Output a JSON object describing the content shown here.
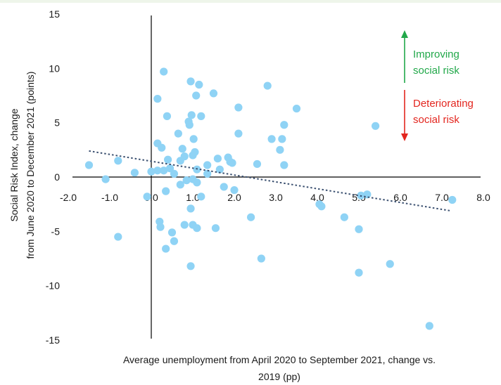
{
  "colors": {
    "background_band": "#eef5ea",
    "point": "#8fd3f5",
    "trendline": "#3b5070",
    "axis": "#000000",
    "improving": "#22a84a",
    "deteriorating": "#e3261f"
  },
  "chart_data": {
    "type": "scatter",
    "xlabel": [
      "Average unemployment from April 2020 to September 2021, change vs.",
      "2019 (pp)"
    ],
    "ylabel": [
      "Social Risk Index, change",
      "from June 2020 to December 2021 (points)"
    ],
    "xlim": [
      -2,
      8
    ],
    "ylim": [
      -15,
      15
    ],
    "x_ticks": [
      -2,
      -1,
      0,
      1,
      2,
      3,
      4,
      5,
      6,
      7,
      8
    ],
    "x_tick_labels": [
      "-2.0",
      "-1.0",
      "0.0",
      "1.0",
      "2.0",
      "3.0",
      "4.0",
      "5.0",
      "6.0",
      "7.0",
      "8.0"
    ],
    "y_ticks": [
      15,
      10,
      5,
      0,
      -5,
      -10,
      -15
    ],
    "y_tick_labels": [
      "15",
      "10",
      "5",
      "0",
      "-5",
      "-10",
      "-15"
    ],
    "grid": false,
    "legend": "none",
    "trendline": {
      "x": [
        -1.5,
        7.2
      ],
      "y": [
        2.4,
        -3.1
      ]
    },
    "annotations": {
      "improving": [
        "Improving",
        "social risk"
      ],
      "deteriorating": [
        "Deteriorating",
        "social risk"
      ]
    },
    "points": [
      [
        -1.5,
        1.1
      ],
      [
        -1.1,
        -0.2
      ],
      [
        -0.8,
        1.5
      ],
      [
        -0.8,
        -5.5
      ],
      [
        -0.4,
        0.4
      ],
      [
        -0.1,
        -1.8
      ],
      [
        0.0,
        0.5
      ],
      [
        0.15,
        0.6
      ],
      [
        0.15,
        3.1
      ],
      [
        0.15,
        7.2
      ],
      [
        0.2,
        -4.1
      ],
      [
        0.22,
        -4.6
      ],
      [
        0.25,
        2.7
      ],
      [
        0.3,
        9.7
      ],
      [
        0.3,
        0.6
      ],
      [
        0.35,
        -6.6
      ],
      [
        0.35,
        -1.3
      ],
      [
        0.38,
        5.6
      ],
      [
        0.4,
        1.6
      ],
      [
        0.45,
        0.8
      ],
      [
        0.5,
        -5.1
      ],
      [
        0.55,
        0.3
      ],
      [
        0.55,
        -5.9
      ],
      [
        0.65,
        4.0
      ],
      [
        0.7,
        1.5
      ],
      [
        0.7,
        -0.7
      ],
      [
        0.75,
        2.6
      ],
      [
        0.8,
        1.9
      ],
      [
        0.8,
        -4.4
      ],
      [
        0.85,
        -0.3
      ],
      [
        0.9,
        5.1
      ],
      [
        0.92,
        4.8
      ],
      [
        0.95,
        -8.2
      ],
      [
        0.95,
        -2.9
      ],
      [
        0.95,
        8.8
      ],
      [
        0.97,
        5.7
      ],
      [
        1.0,
        2.0
      ],
      [
        1.0,
        -0.2
      ],
      [
        1.0,
        -4.4
      ],
      [
        1.02,
        3.5
      ],
      [
        1.05,
        2.3
      ],
      [
        1.08,
        7.5
      ],
      [
        1.1,
        -0.5
      ],
      [
        1.1,
        0.7
      ],
      [
        1.1,
        -4.7
      ],
      [
        1.15,
        8.5
      ],
      [
        1.2,
        5.6
      ],
      [
        1.2,
        -1.8
      ],
      [
        1.35,
        0.3
      ],
      [
        1.35,
        1.1
      ],
      [
        1.5,
        7.7
      ],
      [
        1.55,
        -4.7
      ],
      [
        1.6,
        1.7
      ],
      [
        1.65,
        0.7
      ],
      [
        1.75,
        -0.9
      ],
      [
        1.85,
        1.8
      ],
      [
        1.9,
        1.4
      ],
      [
        1.95,
        1.3
      ],
      [
        2.0,
        -1.2
      ],
      [
        2.1,
        6.4
      ],
      [
        2.1,
        4.0
      ],
      [
        2.4,
        -3.7
      ],
      [
        2.55,
        1.2
      ],
      [
        2.65,
        -7.5
      ],
      [
        2.8,
        8.4
      ],
      [
        2.9,
        3.5
      ],
      [
        3.1,
        2.5
      ],
      [
        3.15,
        3.5
      ],
      [
        3.2,
        4.8
      ],
      [
        3.2,
        1.1
      ],
      [
        3.5,
        6.3
      ],
      [
        4.05,
        -2.5
      ],
      [
        4.1,
        -2.7
      ],
      [
        4.65,
        -3.7
      ],
      [
        5.0,
        -4.8
      ],
      [
        5.0,
        -8.8
      ],
      [
        5.05,
        -1.7
      ],
      [
        5.2,
        -1.6
      ],
      [
        5.4,
        4.7
      ],
      [
        5.75,
        -8.0
      ],
      [
        6.7,
        -13.7
      ],
      [
        7.25,
        -2.1
      ]
    ]
  }
}
